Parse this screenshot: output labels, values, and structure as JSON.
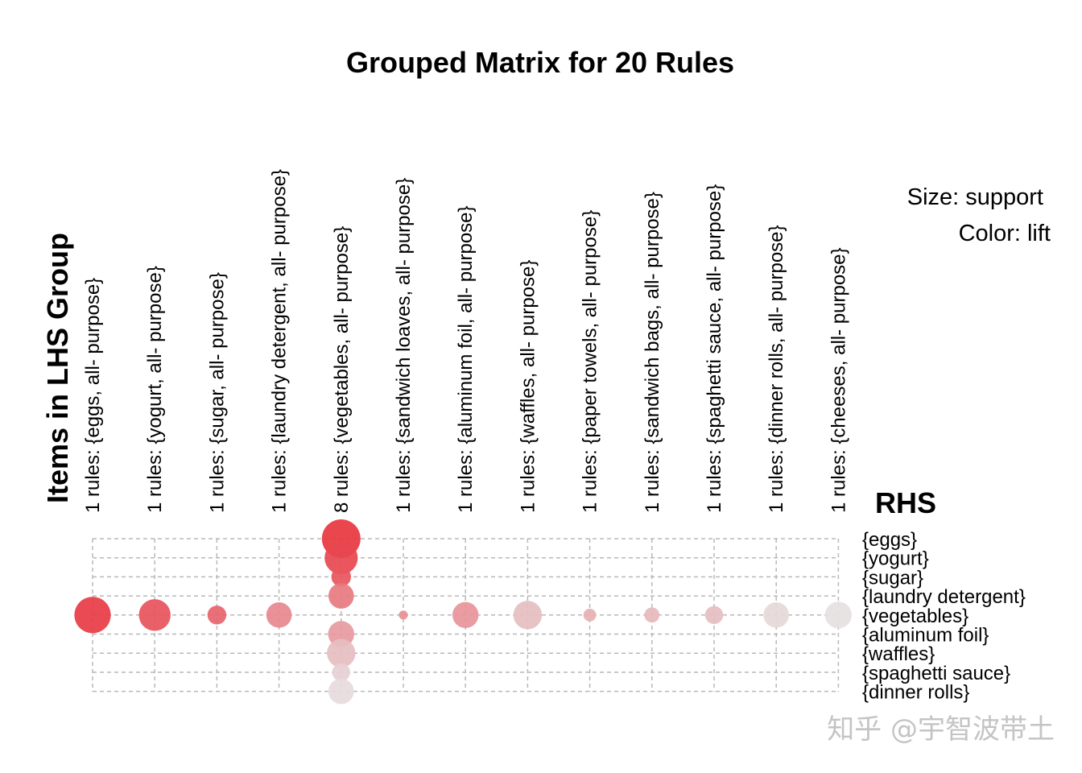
{
  "chart_data": {
    "type": "grouped-matrix",
    "title": "Grouped Matrix for 20 Rules",
    "ylabel": "Items in LHS Group",
    "xlabel": "RHS",
    "legend": {
      "size": "Size: support",
      "color": "Color: lift",
      "placement": "top-right"
    },
    "lhs_groups": [
      "1 rules: {eggs, all- purpose}",
      "1 rules: {yogurt, all- purpose}",
      "1 rules: {sugar, all- purpose}",
      "1 rules: {laundry detergent, all- purpose}",
      "8 rules: {vegetables, all- purpose}",
      "1 rules: {sandwich loaves, all- purpose}",
      "1 rules: {aluminum foil, all- purpose}",
      "1 rules: {waffles, all- purpose}",
      "1 rules: {paper towels, all- purpose}",
      "1 rules: {sandwich bags, all- purpose}",
      "1 rules: {spaghetti sauce, all- purpose}",
      "1 rules: {dinner rolls, all- purpose}",
      "1 rules: {cheeses, all- purpose}"
    ],
    "rhs_items": [
      "{eggs}",
      "{yogurt}",
      "{sugar}",
      "{laundry detergent}",
      "{vegetables}",
      "{aluminum foil}",
      "{waffles}",
      "{spaghetti sauce}",
      "{dinner rolls}"
    ],
    "points": [
      {
        "group": 0,
        "rhs": 4,
        "support": 0.82,
        "lift": 0.95
      },
      {
        "group": 1,
        "rhs": 4,
        "support": 0.62,
        "lift": 0.82
      },
      {
        "group": 2,
        "rhs": 4,
        "support": 0.22,
        "lift": 0.72
      },
      {
        "group": 3,
        "rhs": 4,
        "support": 0.4,
        "lift": 0.52
      },
      {
        "group": 4,
        "rhs": 0,
        "support": 0.92,
        "lift": 0.98
      },
      {
        "group": 4,
        "rhs": 1,
        "support": 0.68,
        "lift": 0.88
      },
      {
        "group": 4,
        "rhs": 2,
        "support": 0.24,
        "lift": 0.8
      },
      {
        "group": 4,
        "rhs": 3,
        "support": 0.4,
        "lift": 0.6
      },
      {
        "group": 4,
        "rhs": 5,
        "support": 0.42,
        "lift": 0.42
      },
      {
        "group": 4,
        "rhs": 6,
        "support": 0.5,
        "lift": 0.22
      },
      {
        "group": 4,
        "rhs": 7,
        "support": 0.2,
        "lift": 0.12
      },
      {
        "group": 4,
        "rhs": 8,
        "support": 0.4,
        "lift": 0.06
      },
      {
        "group": 5,
        "rhs": 4,
        "support": 0.05,
        "lift": 0.48
      },
      {
        "group": 6,
        "rhs": 4,
        "support": 0.42,
        "lift": 0.45
      },
      {
        "group": 7,
        "rhs": 4,
        "support": 0.5,
        "lift": 0.22
      },
      {
        "group": 8,
        "rhs": 4,
        "support": 0.1,
        "lift": 0.3
      },
      {
        "group": 9,
        "rhs": 4,
        "support": 0.14,
        "lift": 0.25
      },
      {
        "group": 10,
        "rhs": 4,
        "support": 0.2,
        "lift": 0.22
      },
      {
        "group": 11,
        "rhs": 4,
        "support": 0.4,
        "lift": 0.08
      },
      {
        "group": 12,
        "rhs": 4,
        "support": 0.44,
        "lift": 0.03
      }
    ],
    "color_scale": {
      "high": "#e8323c",
      "low": "#e6e6e6"
    },
    "grid": true
  },
  "watermark": "知乎 @宇智波带土"
}
